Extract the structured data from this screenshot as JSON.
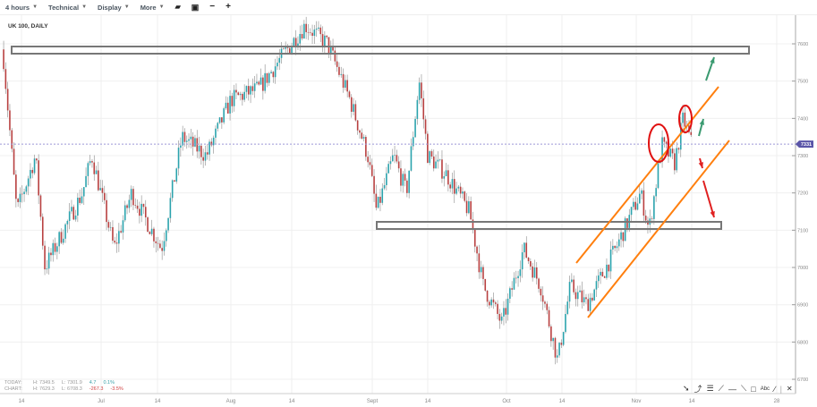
{
  "toolbar": {
    "interval": "4 hours",
    "technical": "Technical",
    "display": "Display",
    "more": "More",
    "icons": [
      "folder-icon",
      "save-icon",
      "zoom-out-icon",
      "zoom-in-icon"
    ]
  },
  "chart_title": "UK 100, DAILY",
  "stats": {
    "today": {
      "label": "TODAY:",
      "high": "H: 7349.5",
      "low": "L: 7301.9",
      "change": "4.7",
      "pct": "0.1%"
    },
    "chart": {
      "label": "CHART:",
      "high": "H: 7629.3",
      "low": "L: 6708.3",
      "change": "-267.3",
      "pct": "-3.5%"
    }
  },
  "drawing_tools": [
    "cursor-icon",
    "curve-icon",
    "fib-icon",
    "fan-icon",
    "hline-icon",
    "line-icon",
    "rectangle-icon",
    "text-icon",
    "pen-icon",
    "separator",
    "close-icon"
  ],
  "colors": {
    "up": "#2ba3ad",
    "down": "#b84040",
    "wick": "#8a8a8a",
    "last_price": "#5a55a8",
    "drawing": "#ff7f0e",
    "box": "#777777",
    "circle": "#e01010",
    "arrow_up": "#3a9a70",
    "arrow_down": "#e02020"
  },
  "chart_data": {
    "type": "candlestick",
    "title": "UK 100, DAILY",
    "ylim": [
      6680,
      7660
    ],
    "y_ticks": [
      7600,
      7500,
      7400,
      7300,
      7200,
      7100,
      7000,
      6900,
      6800,
      6700
    ],
    "x_ticks": [
      {
        "date": "Jun 14",
        "label": "14"
      },
      {
        "date": "Jul 1",
        "label": "Jul"
      },
      {
        "date": "Jul 14",
        "label": "14"
      },
      {
        "date": "Aug 1",
        "label": "Aug"
      },
      {
        "date": "Aug 14",
        "label": "14"
      },
      {
        "date": "Sep 1",
        "label": "Sept"
      },
      {
        "date": "Sep 14",
        "label": "14"
      },
      {
        "date": "Oct 1",
        "label": "Oct"
      },
      {
        "date": "Oct 14",
        "label": "14"
      },
      {
        "date": "Nov 1",
        "label": "Nov"
      },
      {
        "date": "Nov 14",
        "label": "14"
      },
      {
        "date": "Nov 28",
        "label": "28"
      }
    ],
    "last_price": "7331",
    "grid": true,
    "approx_close_path": [
      [
        "Jun 10",
        7585
      ],
      [
        "Jun 13",
        7150
      ],
      [
        "Jun 17",
        7300
      ],
      [
        "Jun 19",
        7000
      ],
      [
        "Jun 27",
        7200
      ],
      [
        "Jun 29",
        7300
      ],
      [
        "Jul 4",
        7050
      ],
      [
        "Jul 8",
        7200
      ],
      [
        "Jul 15",
        7050
      ],
      [
        "Jul 20",
        7350
      ],
      [
        "Jul 26",
        7300
      ],
      [
        "Aug 1",
        7450
      ],
      [
        "Aug 7",
        7480
      ],
      [
        "Aug 11",
        7550
      ],
      [
        "Aug 17",
        7650
      ],
      [
        "Aug 22",
        7600
      ],
      [
        "Aug 27",
        7450
      ],
      [
        "Aug 31",
        7300
      ],
      [
        "Sep 2",
        7150
      ],
      [
        "Sep 6",
        7300
      ],
      [
        "Sep 9",
        7200
      ],
      [
        "Sep 12",
        7500
      ],
      [
        "Sep 14",
        7300
      ],
      [
        "Sep 18",
        7250
      ],
      [
        "Sep 23",
        7150
      ],
      [
        "Sep 26",
        6950
      ],
      [
        "Sep 30",
        6850
      ],
      [
        "Oct 5",
        7050
      ],
      [
        "Oct 9",
        6950
      ],
      [
        "Oct 11",
        6850
      ],
      [
        "Oct 13",
        6750
      ],
      [
        "Oct 16",
        6950
      ],
      [
        "Oct 20",
        6900
      ],
      [
        "Oct 27",
        7050
      ],
      [
        "Nov 2",
        7200
      ],
      [
        "Nov 4",
        7100
      ],
      [
        "Nov 7",
        7330
      ],
      [
        "Nov 10",
        7280
      ],
      [
        "Nov 12",
        7400
      ],
      [
        "Nov 14",
        7331
      ]
    ]
  }
}
